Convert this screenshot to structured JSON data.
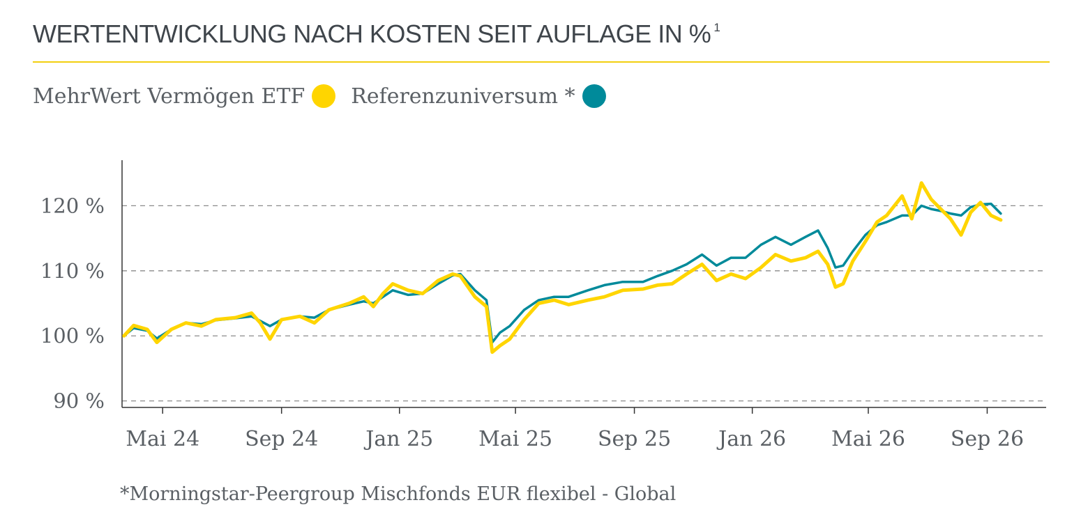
{
  "title": "WERTENTWICKLUNG NACH KOSTEN SEIT AUFLAGE IN %",
  "title_footnote_mark": "1",
  "colors": {
    "fund": "#ffd500",
    "reference": "#008a9a",
    "accent_rule": "#f2cf10"
  },
  "legend": [
    {
      "label": "MehrWert Vermögen ETF",
      "color": "#ffd500"
    },
    {
      "label": "Referenzuniversum *",
      "color": "#008a9a"
    }
  ],
  "footnote": "*Morningstar-Peergroup Mischfonds EUR flexibel - Global",
  "chart_data": {
    "type": "line",
    "title": "WERTENTWICKLUNG NACH KOSTEN SEIT AUFLAGE IN %",
    "xlabel": "",
    "ylabel": "",
    "ylim": [
      89,
      127
    ],
    "yticks": [
      90,
      100,
      110,
      120
    ],
    "ytick_labels": [
      "90 %",
      "100 %",
      "110 %",
      "120 %"
    ],
    "xlim": [
      "2024-03-20",
      "2026-11-01"
    ],
    "xticks": [
      "2024-05-01",
      "2024-09-01",
      "2025-01-01",
      "2025-05-01",
      "2025-09-01",
      "2026-01-01",
      "2026-05-01",
      "2026-09-01"
    ],
    "xtick_labels": [
      "Mai 24",
      "Sep 24",
      "Jan 25",
      "Mai 25",
      "Sep 25",
      "Jan 26",
      "Mai 26",
      "Sep 26"
    ],
    "grid": "horizontal dashed",
    "legend_position": "top-left",
    "series": [
      {
        "name": "MehrWert Vermögen ETF",
        "color": "#ffd500",
        "points": [
          [
            "2024-03-22",
            100.0
          ],
          [
            "2024-04-01",
            101.6
          ],
          [
            "2024-04-15",
            101.0
          ],
          [
            "2024-04-25",
            99.0
          ],
          [
            "2024-05-10",
            101.0
          ],
          [
            "2024-05-25",
            102.0
          ],
          [
            "2024-06-10",
            101.5
          ],
          [
            "2024-06-25",
            102.5
          ],
          [
            "2024-07-15",
            102.8
          ],
          [
            "2024-08-01",
            103.5
          ],
          [
            "2024-08-10",
            102.0
          ],
          [
            "2024-08-20",
            99.5
          ],
          [
            "2024-09-01",
            102.5
          ],
          [
            "2024-09-20",
            103.0
          ],
          [
            "2024-10-05",
            102.0
          ],
          [
            "2024-10-20",
            104.0
          ],
          [
            "2024-11-10",
            105.0
          ],
          [
            "2024-11-25",
            106.0
          ],
          [
            "2024-12-05",
            104.5
          ],
          [
            "2024-12-15",
            106.5
          ],
          [
            "2024-12-25",
            108.0
          ],
          [
            "2025-01-10",
            107.0
          ],
          [
            "2025-01-25",
            106.5
          ],
          [
            "2025-02-10",
            108.5
          ],
          [
            "2025-02-25",
            109.5
          ],
          [
            "2025-03-05",
            109.2
          ],
          [
            "2025-03-20",
            106.0
          ],
          [
            "2025-04-01",
            104.5
          ],
          [
            "2025-04-07",
            97.5
          ],
          [
            "2025-04-15",
            98.5
          ],
          [
            "2025-04-25",
            99.5
          ],
          [
            "2025-05-10",
            102.5
          ],
          [
            "2025-05-25",
            105.0
          ],
          [
            "2025-06-10",
            105.5
          ],
          [
            "2025-06-25",
            104.8
          ],
          [
            "2025-07-15",
            105.5
          ],
          [
            "2025-08-01",
            106.0
          ],
          [
            "2025-08-20",
            107.0
          ],
          [
            "2025-09-10",
            107.2
          ],
          [
            "2025-09-25",
            107.8
          ],
          [
            "2025-10-10",
            108.0
          ],
          [
            "2025-10-25",
            109.5
          ],
          [
            "2025-11-10",
            111.0
          ],
          [
            "2025-11-25",
            108.5
          ],
          [
            "2025-12-10",
            109.5
          ],
          [
            "2025-12-25",
            108.8
          ],
          [
            "2026-01-10",
            110.5
          ],
          [
            "2026-01-25",
            112.5
          ],
          [
            "2026-02-10",
            111.5
          ],
          [
            "2026-02-25",
            112.0
          ],
          [
            "2026-03-10",
            113.0
          ],
          [
            "2026-03-20",
            111.0
          ],
          [
            "2026-03-28",
            107.5
          ],
          [
            "2026-04-05",
            108.0
          ],
          [
            "2026-04-15",
            111.5
          ],
          [
            "2026-04-28",
            114.5
          ],
          [
            "2026-05-10",
            117.5
          ],
          [
            "2026-05-20",
            118.5
          ],
          [
            "2026-06-05",
            121.5
          ],
          [
            "2026-06-15",
            118.0
          ],
          [
            "2026-06-25",
            123.5
          ],
          [
            "2026-07-05",
            121.0
          ],
          [
            "2026-07-15",
            119.5
          ],
          [
            "2026-07-25",
            118.0
          ],
          [
            "2026-08-05",
            115.5
          ],
          [
            "2026-08-15",
            119.0
          ],
          [
            "2026-08-25",
            120.5
          ],
          [
            "2026-09-05",
            118.5
          ],
          [
            "2026-09-15",
            117.8
          ]
        ]
      },
      {
        "name": "Referenzuniversum *",
        "color": "#008a9a",
        "points": [
          [
            "2024-03-22",
            100.0
          ],
          [
            "2024-04-01",
            101.2
          ],
          [
            "2024-04-15",
            100.8
          ],
          [
            "2024-04-25",
            99.6
          ],
          [
            "2024-05-10",
            101.0
          ],
          [
            "2024-05-25",
            102.0
          ],
          [
            "2024-06-10",
            101.8
          ],
          [
            "2024-06-25",
            102.4
          ],
          [
            "2024-07-15",
            102.7
          ],
          [
            "2024-08-01",
            103.0
          ],
          [
            "2024-08-10",
            102.3
          ],
          [
            "2024-08-20",
            101.5
          ],
          [
            "2024-09-01",
            102.5
          ],
          [
            "2024-09-20",
            103.0
          ],
          [
            "2024-10-05",
            102.8
          ],
          [
            "2024-10-20",
            104.0
          ],
          [
            "2024-11-10",
            104.8
          ],
          [
            "2024-11-25",
            105.3
          ],
          [
            "2024-12-05",
            105.0
          ],
          [
            "2024-12-15",
            106.0
          ],
          [
            "2024-12-25",
            107.0
          ],
          [
            "2025-01-10",
            106.3
          ],
          [
            "2025-01-25",
            106.5
          ],
          [
            "2025-02-10",
            108.0
          ],
          [
            "2025-02-25",
            109.3
          ],
          [
            "2025-03-05",
            109.5
          ],
          [
            "2025-03-20",
            107.0
          ],
          [
            "2025-04-01",
            105.5
          ],
          [
            "2025-04-07",
            99.0
          ],
          [
            "2025-04-15",
            100.5
          ],
          [
            "2025-04-25",
            101.5
          ],
          [
            "2025-05-10",
            104.0
          ],
          [
            "2025-05-25",
            105.5
          ],
          [
            "2025-06-10",
            106.0
          ],
          [
            "2025-06-25",
            106.0
          ],
          [
            "2025-07-15",
            107.0
          ],
          [
            "2025-08-01",
            107.8
          ],
          [
            "2025-08-20",
            108.3
          ],
          [
            "2025-09-10",
            108.3
          ],
          [
            "2025-09-25",
            109.2
          ],
          [
            "2025-10-10",
            110.0
          ],
          [
            "2025-10-25",
            111.0
          ],
          [
            "2025-11-10",
            112.5
          ],
          [
            "2025-11-25",
            110.8
          ],
          [
            "2025-12-10",
            112.0
          ],
          [
            "2025-12-25",
            112.0
          ],
          [
            "2026-01-10",
            114.0
          ],
          [
            "2026-01-25",
            115.2
          ],
          [
            "2026-02-10",
            114.0
          ],
          [
            "2026-02-25",
            115.2
          ],
          [
            "2026-03-10",
            116.2
          ],
          [
            "2026-03-20",
            113.5
          ],
          [
            "2026-03-28",
            110.5
          ],
          [
            "2026-04-05",
            110.8
          ],
          [
            "2026-04-15",
            113.0
          ],
          [
            "2026-04-28",
            115.5
          ],
          [
            "2026-05-10",
            117.0
          ],
          [
            "2026-05-20",
            117.5
          ],
          [
            "2026-06-05",
            118.5
          ],
          [
            "2026-06-15",
            118.5
          ],
          [
            "2026-06-25",
            120.0
          ],
          [
            "2026-07-05",
            119.5
          ],
          [
            "2026-07-15",
            119.2
          ],
          [
            "2026-07-25",
            118.8
          ],
          [
            "2026-08-05",
            118.5
          ],
          [
            "2026-08-15",
            119.8
          ],
          [
            "2026-08-25",
            120.2
          ],
          [
            "2026-09-05",
            120.3
          ],
          [
            "2026-09-15",
            118.8
          ]
        ]
      }
    ]
  }
}
